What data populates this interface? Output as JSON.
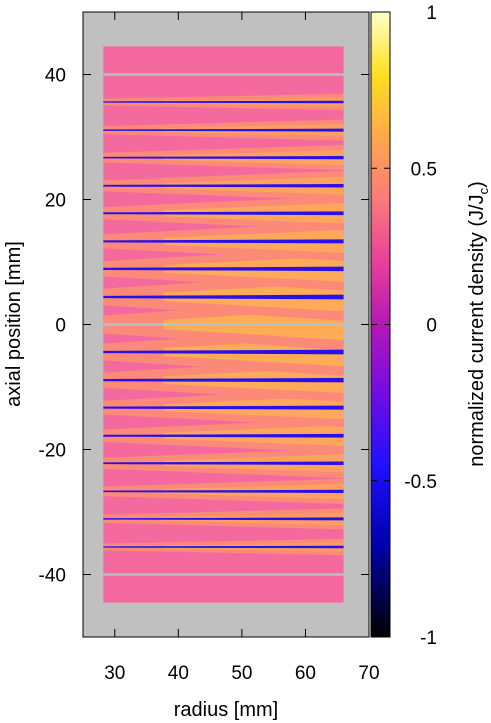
{
  "chart_data": {
    "type": "heatmap",
    "title": "",
    "xlabel": "radius [mm]",
    "ylabel": "axial position [mm]",
    "xlim": [
      25,
      70
    ],
    "ylim": [
      -50,
      50
    ],
    "x_ticks": [
      "30",
      "40",
      "50",
      "60",
      "70"
    ],
    "y_ticks": [
      "40",
      "20",
      "0",
      "-20",
      "-40"
    ],
    "background_color": "#c0c0c0",
    "coil": {
      "r_inner": 28.2,
      "r_outer": 66.0,
      "z_min": -44.5,
      "z_max": 44.5,
      "pancake_count": 20,
      "pancake_boundaries_z": [
        -40,
        -35.6,
        -31.1,
        -26.7,
        -22.2,
        -17.8,
        -13.3,
        -8.9,
        -4.4,
        0,
        4.4,
        8.9,
        13.3,
        17.8,
        22.2,
        26.7,
        31.1,
        35.6,
        40
      ],
      "base_color": "#f56a9e",
      "intermediate_color": "#fb8a78",
      "high_color": "#ffad55"
    },
    "colorbar": {
      "label_main": "normalized current density (J/J",
      "label_sub": "c",
      "label_close": ")",
      "range": [
        -1,
        1
      ],
      "ticks": [
        "1",
        "0.5",
        "0",
        "-0.5",
        "-1"
      ],
      "stops": [
        {
          "value": 1.0,
          "color": "#ffffc8"
        },
        {
          "value": 0.8,
          "color": "#ffe020"
        },
        {
          "value": 0.6,
          "color": "#ffa84c"
        },
        {
          "value": 0.4,
          "color": "#fb7a7a"
        },
        {
          "value": 0.2,
          "color": "#e8409a"
        },
        {
          "value": 0.0,
          "color": "#b418b4"
        },
        {
          "value": -0.2,
          "color": "#7a0ce0"
        },
        {
          "value": -0.45,
          "color": "#2010ff"
        },
        {
          "value": -0.7,
          "color": "#0000b0"
        },
        {
          "value": -1.0,
          "color": "#000000"
        }
      ]
    }
  }
}
